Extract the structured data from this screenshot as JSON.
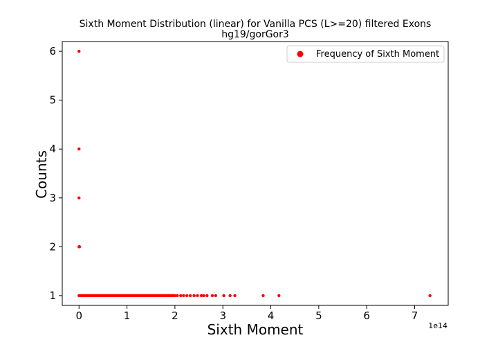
{
  "chart_data": {
    "type": "scatter",
    "title": "Sixth Moment Distribution (linear) for Vanilla PCS (L>=20) filtered Exons",
    "subtitle": "hg19/gorGor3",
    "xlabel": "Sixth Moment",
    "ylabel": "Counts",
    "x_offset_label": "1e14",
    "xlim": [
      -0.35,
      7.7
    ],
    "ylim": [
      0.8,
      6.2
    ],
    "x_ticks": [
      0,
      1,
      2,
      3,
      4,
      5,
      6,
      7
    ],
    "x_tick_labels": [
      "0",
      "1",
      "2",
      "3",
      "4",
      "5",
      "6",
      "7"
    ],
    "y_ticks": [
      1,
      2,
      3,
      4,
      5,
      6
    ],
    "y_tick_labels": [
      "1",
      "2",
      "3",
      "4",
      "5",
      "6"
    ],
    "grid": false,
    "legend_position": "top-right",
    "color": "#ff0000",
    "series": [
      {
        "name": "Frequency of Sixth Moment",
        "points": [
          {
            "x": 0.0,
            "y": 6
          },
          {
            "x": 0.0,
            "y": 4
          },
          {
            "x": 0.0,
            "y": 3
          },
          {
            "x": 0.0,
            "y": 2
          },
          {
            "x": 0.01,
            "y": 2
          },
          {
            "x": 2.05,
            "y": 1
          },
          {
            "x": 2.12,
            "y": 1
          },
          {
            "x": 2.18,
            "y": 1
          },
          {
            "x": 2.25,
            "y": 1
          },
          {
            "x": 2.32,
            "y": 1
          },
          {
            "x": 2.4,
            "y": 1
          },
          {
            "x": 2.47,
            "y": 1
          },
          {
            "x": 2.55,
            "y": 1
          },
          {
            "x": 2.6,
            "y": 1
          },
          {
            "x": 2.67,
            "y": 1
          },
          {
            "x": 2.78,
            "y": 1
          },
          {
            "x": 2.85,
            "y": 1
          },
          {
            "x": 3.02,
            "y": 1
          },
          {
            "x": 3.15,
            "y": 1
          },
          {
            "x": 3.25,
            "y": 1
          },
          {
            "x": 3.84,
            "y": 1
          },
          {
            "x": 4.17,
            "y": 1
          },
          {
            "x": 7.32,
            "y": 1
          }
        ],
        "dense_run": {
          "y": 1,
          "x_start": 0.0,
          "x_end": 2.0,
          "step": 0.02
        }
      }
    ]
  }
}
